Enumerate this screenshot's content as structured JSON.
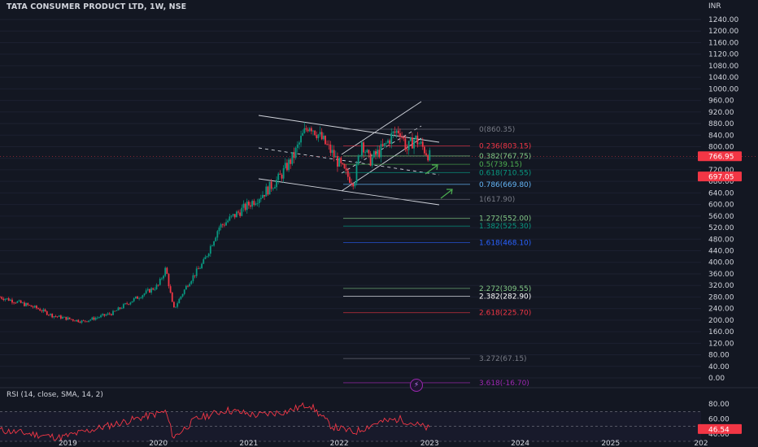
{
  "header": {
    "title": "TATA CONSUMER PRODUCT LTD, 1W, NSE",
    "currency": "INR"
  },
  "price_axis": {
    "labels": [
      "1240.00",
      "1200.00",
      "1160.00",
      "1120.00",
      "1080.00",
      "1040.00",
      "1000.00",
      "960.00",
      "920.00",
      "880.00",
      "840.00",
      "800.00",
      "760.00",
      "720.00",
      "680.00",
      "640.00",
      "600.00",
      "560.00",
      "520.00",
      "480.00",
      "440.00",
      "400.00",
      "360.00",
      "320.00",
      "280.00",
      "240.00",
      "200.00",
      "160.00",
      "120.00",
      "80.00",
      "40.00",
      "0.00"
    ],
    "last_price": "766.95",
    "last_price_color": "#f23645",
    "second_price": "697.05",
    "second_price_color": "#f23645"
  },
  "time_axis": {
    "labels": [
      "2019",
      "2020",
      "2021",
      "2022",
      "2023",
      "2024",
      "2025",
      "202"
    ]
  },
  "rsi": {
    "label": "RSI (14, close, SMA, 14, 2)",
    "axis_labels": [
      "80.00",
      "60.00",
      "40.00"
    ],
    "current_value": "46.54",
    "line_color": "#f23645"
  },
  "chart_data": {
    "type": "candlestick",
    "title": "TATA CONSUMER PRODUCT LTD, 1W, NSE",
    "ylabel": "INR",
    "ylim": [
      -20,
      1260
    ],
    "x_range": [
      "2018-04",
      "2026-01"
    ],
    "last_close": 766.95,
    "fibonacci_levels": [
      {
        "label": "0(860.35)",
        "ratio": 0,
        "value": 860.35,
        "color": "#787b86"
      },
      {
        "label": "0.236(803.15)",
        "ratio": 0.236,
        "value": 803.15,
        "color": "#f23645"
      },
      {
        "label": "0.382(767.75)",
        "ratio": 0.382,
        "value": 767.75,
        "color": "#81c784"
      },
      {
        "label": "0.5(739.15)",
        "ratio": 0.5,
        "value": 739.15,
        "color": "#4caf50"
      },
      {
        "label": "0.618(710.55)",
        "ratio": 0.618,
        "value": 710.55,
        "color": "#089981"
      },
      {
        "label": "0.786(669.80)",
        "ratio": 0.786,
        "value": 669.8,
        "color": "#64b5f6"
      },
      {
        "label": "1(617.90)",
        "ratio": 1,
        "value": 617.9,
        "color": "#787b86"
      },
      {
        "label": "1.272(552.00)",
        "ratio": 1.272,
        "value": 552.0,
        "color": "#81c784"
      },
      {
        "label": "1.382(525.30)",
        "ratio": 1.382,
        "value": 525.3,
        "color": "#089981"
      },
      {
        "label": "1.618(468.10)",
        "ratio": 1.618,
        "value": 468.1,
        "color": "#2962ff"
      },
      {
        "label": "2.272(309.55)",
        "ratio": 2.272,
        "value": 309.55,
        "color": "#81c784"
      },
      {
        "label": "2.382(282.90)",
        "ratio": 2.382,
        "value": 282.9,
        "color": "#ffffff"
      },
      {
        "label": "2.618(225.70)",
        "ratio": 2.618,
        "value": 225.7,
        "color": "#f23645"
      },
      {
        "label": "3.272(67.15)",
        "ratio": 3.272,
        "value": 67.15,
        "color": "#787b86"
      },
      {
        "label": "3.618(-16.70)",
        "ratio": 3.618,
        "value": -16.7,
        "color": "#9c27b0"
      }
    ],
    "price_path": [
      [
        "2018-04",
        280
      ],
      [
        "2018-06",
        265
      ],
      [
        "2018-09",
        240
      ],
      [
        "2018-11",
        215
      ],
      [
        "2019-01",
        205
      ],
      [
        "2019-03",
        195
      ],
      [
        "2019-05",
        210
      ],
      [
        "2019-07",
        225
      ],
      [
        "2019-09",
        260
      ],
      [
        "2019-11",
        290
      ],
      [
        "2020-01",
        320
      ],
      [
        "2020-02",
        380
      ],
      [
        "2020-03",
        235
      ],
      [
        "2020-05",
        330
      ],
      [
        "2020-07",
        400
      ],
      [
        "2020-09",
        520
      ],
      [
        "2020-11",
        560
      ],
      [
        "2021-01",
        600
      ],
      [
        "2021-03",
        640
      ],
      [
        "2021-05",
        690
      ],
      [
        "2021-07",
        770
      ],
      [
        "2021-08",
        830
      ],
      [
        "2021-09",
        880
      ],
      [
        "2021-10",
        850
      ],
      [
        "2021-12",
        780
      ],
      [
        "2022-02",
        700
      ],
      [
        "2022-03",
        680
      ],
      [
        "2022-04",
        820
      ],
      [
        "2022-05",
        750
      ],
      [
        "2022-07",
        800
      ],
      [
        "2022-08",
        840
      ],
      [
        "2022-09",
        860
      ],
      [
        "2022-10",
        790
      ],
      [
        "2022-11",
        830
      ],
      [
        "2022-12",
        800
      ],
      [
        "2023-01",
        767
      ]
    ],
    "rsi_series": {
      "name": "RSI (14, close, SMA, 14, 2)",
      "ylim": [
        30,
        90
      ],
      "path": [
        [
          "2018-04",
          45
        ],
        [
          "2018-08",
          40
        ],
        [
          "2018-12",
          35
        ],
        [
          "2019-04",
          45
        ],
        [
          "2019-08",
          55
        ],
        [
          "2019-12",
          65
        ],
        [
          "2020-02",
          70
        ],
        [
          "2020-03",
          35
        ],
        [
          "2020-06",
          60
        ],
        [
          "2020-10",
          72
        ],
        [
          "2021-02",
          65
        ],
        [
          "2021-06",
          70
        ],
        [
          "2021-09",
          80
        ],
        [
          "2021-12",
          50
        ],
        [
          "2022-03",
          42
        ],
        [
          "2022-06",
          55
        ],
        [
          "2022-09",
          60
        ],
        [
          "2022-12",
          50
        ],
        [
          "2023-01",
          46.54
        ]
      ]
    }
  }
}
